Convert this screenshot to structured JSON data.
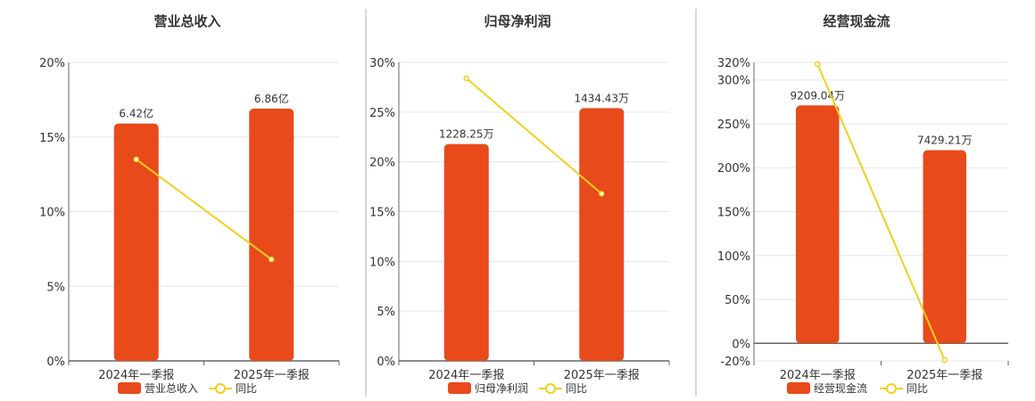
{
  "colors": {
    "bar": "#e84a1b",
    "line": "#f2cf1d",
    "grid": "#e6e6e6",
    "axis": "#666666",
    "divider": "#b0b0b0"
  },
  "chart_data": [
    {
      "type": "bar",
      "title": "营业总收入",
      "categories": [
        "2024年一季报",
        "2025年一季报"
      ],
      "y_ticks": [
        "0%",
        "5%",
        "10%",
        "15%",
        "20%"
      ],
      "ylim": [
        0,
        20
      ],
      "series": [
        {
          "name": "营业总收入",
          "type": "bar",
          "values": [
            15.9,
            16.9
          ],
          "labels": [
            "6.42亿",
            "6.86亿"
          ]
        },
        {
          "name": "同比",
          "type": "line",
          "values": [
            13.5,
            6.8
          ]
        }
      ],
      "legend_position": "bottom"
    },
    {
      "type": "bar",
      "title": "归母净利润",
      "categories": [
        "2024年一季报",
        "2025年一季报"
      ],
      "y_ticks": [
        "0%",
        "5%",
        "10%",
        "15%",
        "20%",
        "25%",
        "30%"
      ],
      "ylim": [
        0,
        30
      ],
      "series": [
        {
          "name": "归母净利润",
          "type": "bar",
          "values": [
            21.8,
            25.4
          ],
          "labels": [
            "1228.25万",
            "1434.43万"
          ]
        },
        {
          "name": "同比",
          "type": "line",
          "values": [
            28.4,
            16.8
          ]
        }
      ],
      "legend_position": "bottom"
    },
    {
      "type": "bar",
      "title": "经营现金流",
      "categories": [
        "2024年一季报",
        "2025年一季报"
      ],
      "y_ticks": [
        "-20%",
        "0%",
        "50%",
        "100%",
        "150%",
        "200%",
        "250%",
        "300%",
        "320%"
      ],
      "ylim": [
        -20,
        320
      ],
      "series": [
        {
          "name": "经营现金流",
          "type": "bar",
          "values": [
            271,
            220
          ],
          "labels": [
            "9209.04万",
            "7429.21万"
          ]
        },
        {
          "name": "同比",
          "type": "line",
          "values": [
            318,
            -19
          ]
        }
      ],
      "legend_position": "bottom"
    }
  ]
}
